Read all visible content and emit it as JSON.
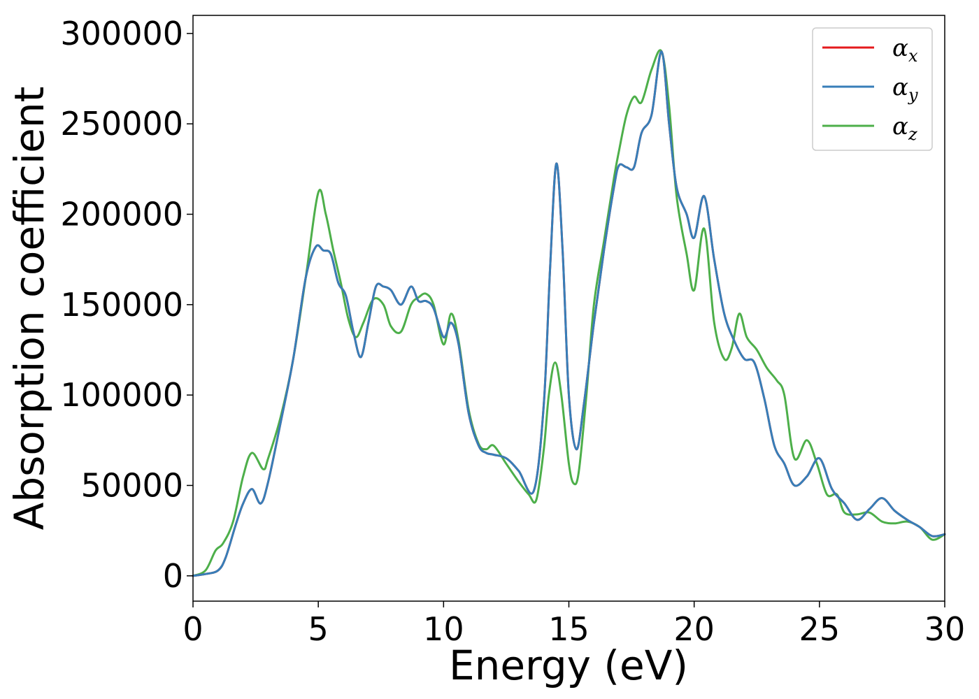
{
  "chart_data": {
    "type": "line",
    "xlabel": "Energy (eV)",
    "ylabel": "Absorption coefficient",
    "xlim": [
      0,
      30
    ],
    "ylim": [
      -14000,
      310000
    ],
    "xticks": [
      0,
      5,
      10,
      15,
      20,
      25,
      30
    ],
    "xtick_labels": [
      "0",
      "5",
      "10",
      "15",
      "20",
      "25",
      "30"
    ],
    "yticks": [
      0,
      50000,
      100000,
      150000,
      200000,
      250000,
      300000
    ],
    "ytick_labels": [
      "0",
      "50000",
      "100000",
      "150000",
      "200000",
      "250000",
      "300000"
    ],
    "grid": false,
    "legend_position": "top-right",
    "series": [
      {
        "name": "αx",
        "symbol": "α",
        "subscript": "x",
        "color": "#e41a1c",
        "x": [
          0,
          0.5,
          1.0,
          1.3,
          1.7,
          2.0,
          2.35,
          2.7,
          3.0,
          3.5,
          4.0,
          4.5,
          4.9,
          5.2,
          5.5,
          5.8,
          6.1,
          6.4,
          6.7,
          7.0,
          7.3,
          7.6,
          7.9,
          8.3,
          8.7,
          9.0,
          9.3,
          9.6,
          10.0,
          10.3,
          10.6,
          11.0,
          11.4,
          11.7,
          12.0,
          12.5,
          13.0,
          13.6,
          14.0,
          14.25,
          14.5,
          14.75,
          15.0,
          15.3,
          15.6,
          16.0,
          16.4,
          16.8,
          17.0,
          17.3,
          17.6,
          17.9,
          18.3,
          18.7,
          19.0,
          19.3,
          19.7,
          20.0,
          20.4,
          20.8,
          21.2,
          21.6,
          22.0,
          22.4,
          22.8,
          23.2,
          23.6,
          24.0,
          24.5,
          25.0,
          25.5,
          26.0,
          26.5,
          27.0,
          27.5,
          28.0,
          28.5,
          29.0,
          29.5,
          30.0
        ],
        "y": [
          0,
          1000,
          3000,
          10000,
          28000,
          40000,
          48000,
          40000,
          52000,
          85000,
          120000,
          165000,
          182000,
          180000,
          178000,
          162000,
          155000,
          135000,
          121000,
          140000,
          160000,
          160000,
          158000,
          150000,
          160000,
          152000,
          152000,
          148000,
          132000,
          140000,
          128000,
          90000,
          72000,
          68000,
          67000,
          65000,
          58000,
          47000,
          95000,
          170000,
          228000,
          180000,
          100000,
          70000,
          95000,
          140000,
          180000,
          215000,
          227000,
          226000,
          226000,
          245000,
          255000,
          290000,
          250000,
          215000,
          200000,
          187000,
          210000,
          175000,
          145000,
          130000,
          120000,
          118000,
          98000,
          72000,
          62000,
          50000,
          55000,
          65000,
          48000,
          40000,
          31000,
          37000,
          43000,
          36000,
          31000,
          27000,
          22000,
          23000
        ]
      },
      {
        "name": "αy",
        "symbol": "α",
        "subscript": "y",
        "color": "#377eb8",
        "x": [
          0,
          0.5,
          1.0,
          1.3,
          1.7,
          2.0,
          2.35,
          2.7,
          3.0,
          3.5,
          4.0,
          4.5,
          4.9,
          5.2,
          5.5,
          5.8,
          6.1,
          6.4,
          6.7,
          7.0,
          7.3,
          7.6,
          7.9,
          8.3,
          8.7,
          9.0,
          9.3,
          9.6,
          10.0,
          10.3,
          10.6,
          11.0,
          11.4,
          11.7,
          12.0,
          12.5,
          13.0,
          13.6,
          14.0,
          14.25,
          14.5,
          14.75,
          15.0,
          15.3,
          15.6,
          16.0,
          16.4,
          16.8,
          17.0,
          17.3,
          17.6,
          17.9,
          18.3,
          18.7,
          19.0,
          19.3,
          19.7,
          20.0,
          20.4,
          20.8,
          21.2,
          21.6,
          22.0,
          22.4,
          22.8,
          23.2,
          23.6,
          24.0,
          24.5,
          25.0,
          25.5,
          26.0,
          26.5,
          27.0,
          27.5,
          28.0,
          28.5,
          29.0,
          29.5,
          30.0
        ],
        "y": [
          0,
          1000,
          3000,
          10000,
          28000,
          40000,
          48000,
          40000,
          52000,
          85000,
          120000,
          165000,
          182000,
          180000,
          178000,
          162000,
          155000,
          135000,
          121000,
          140000,
          160000,
          160000,
          158000,
          150000,
          160000,
          152000,
          152000,
          148000,
          132000,
          140000,
          128000,
          90000,
          72000,
          68000,
          67000,
          65000,
          58000,
          47000,
          95000,
          170000,
          228000,
          180000,
          100000,
          70000,
          95000,
          140000,
          180000,
          215000,
          227000,
          226000,
          226000,
          245000,
          255000,
          290000,
          250000,
          215000,
          200000,
          187000,
          210000,
          175000,
          145000,
          130000,
          120000,
          118000,
          98000,
          72000,
          62000,
          50000,
          55000,
          65000,
          48000,
          40000,
          31000,
          37000,
          43000,
          36000,
          31000,
          27000,
          22000,
          23000
        ]
      },
      {
        "name": "αz",
        "symbol": "α",
        "subscript": "z",
        "color": "#4daf4a",
        "x": [
          0,
          0.5,
          0.9,
          1.2,
          1.6,
          2.0,
          2.35,
          2.8,
          3.0,
          3.5,
          4.0,
          4.5,
          5.0,
          5.3,
          5.6,
          5.9,
          6.2,
          6.5,
          6.8,
          7.2,
          7.6,
          7.9,
          8.3,
          8.7,
          9.0,
          9.3,
          9.6,
          10.0,
          10.3,
          10.6,
          11.0,
          11.4,
          11.7,
          12.0,
          12.5,
          13.0,
          13.4,
          13.7,
          14.0,
          14.2,
          14.45,
          14.7,
          15.0,
          15.2,
          15.4,
          15.7,
          16.0,
          16.4,
          16.8,
          17.0,
          17.3,
          17.6,
          17.9,
          18.3,
          18.7,
          19.0,
          19.3,
          19.7,
          20.0,
          20.4,
          20.8,
          21.2,
          21.5,
          21.8,
          22.1,
          22.5,
          22.9,
          23.3,
          23.6,
          24.0,
          24.5,
          24.9,
          25.3,
          25.7,
          26.0,
          26.5,
          27.0,
          27.5,
          28.0,
          28.5,
          29.0,
          29.5,
          30.0
        ],
        "y": [
          0,
          3000,
          14000,
          18000,
          30000,
          55000,
          68000,
          59000,
          65000,
          88000,
          120000,
          165000,
          212000,
          200000,
          180000,
          162000,
          142000,
          132000,
          140000,
          153000,
          150000,
          138000,
          135000,
          150000,
          154000,
          156000,
          150000,
          128000,
          145000,
          130000,
          92000,
          73000,
          70000,
          72000,
          62000,
          52000,
          45000,
          42000,
          70000,
          100000,
          118000,
          100000,
          62000,
          51000,
          58000,
          100000,
          150000,
          185000,
          220000,
          235000,
          255000,
          265000,
          262000,
          280000,
          290000,
          260000,
          210000,
          178000,
          158000,
          192000,
          140000,
          120000,
          126000,
          145000,
          132000,
          125000,
          115000,
          108000,
          100000,
          65000,
          75000,
          62000,
          45000,
          45000,
          35000,
          34000,
          35000,
          30000,
          29000,
          30000,
          27000,
          20000,
          23000
        ]
      }
    ]
  }
}
